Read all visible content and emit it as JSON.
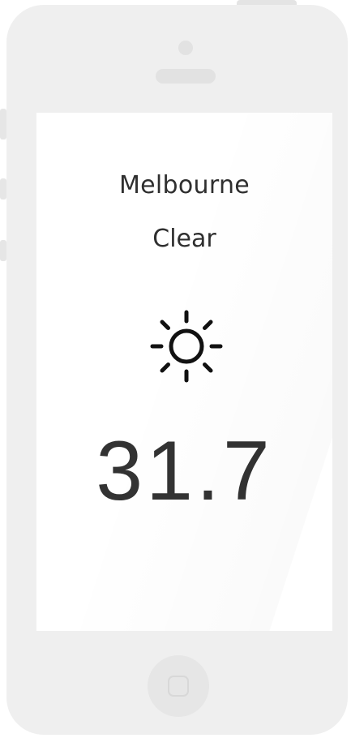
{
  "weather": {
    "city": "Melbourne",
    "condition": "Clear",
    "temperature": "31.7",
    "icon": "sun-icon"
  }
}
